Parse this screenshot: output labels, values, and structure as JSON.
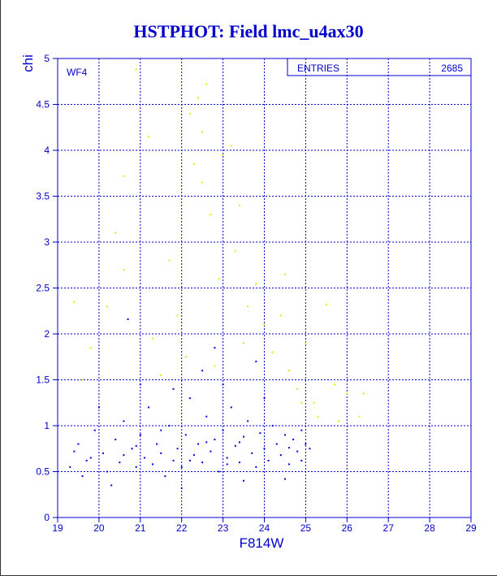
{
  "chart_data": {
    "type": "scatter",
    "title": "HSTPHOT: Field lmc_u4ax30",
    "xlabel": "F814W",
    "ylabel": "chi",
    "annotation": "WF4",
    "stats": {
      "label": "ENTRIES",
      "value": 2685
    },
    "xlim": [
      19,
      29
    ],
    "ylim": [
      0,
      5
    ],
    "xticks": [
      19,
      20,
      21,
      22,
      23,
      24,
      25,
      26,
      27,
      28,
      29
    ],
    "yticks": [
      0,
      0.5,
      1,
      1.5,
      2,
      2.5,
      3,
      3.5,
      4,
      4.5,
      5
    ],
    "grid": true,
    "axis_color": "#0000cc",
    "series": [
      {
        "color": "#0000dd",
        "x": [
          19.3,
          19.5,
          19.7,
          19.9,
          20.1,
          20.2,
          20.4,
          20.5,
          20.6,
          20.7,
          20.8,
          20.9,
          21.0,
          21.1,
          21.2,
          21.3,
          21.4,
          21.5,
          21.6,
          21.7,
          21.8,
          21.9,
          22.0,
          22.1,
          22.2,
          22.3,
          22.4,
          22.5,
          22.6,
          22.7,
          22.8,
          22.9,
          23.0,
          23.1,
          23.2,
          23.3,
          23.4,
          23.5,
          23.6,
          23.7,
          23.8,
          23.9,
          24.0,
          24.1,
          24.2,
          24.3,
          24.4,
          24.5,
          24.6,
          24.7,
          24.8,
          24.9,
          25.0,
          25.1,
          19.6,
          20.0,
          20.3,
          21.0,
          22.0,
          22.5,
          23.0,
          23.5,
          24.0,
          24.5,
          23.8,
          22.8,
          21.8,
          19.8,
          20.9,
          22.2,
          23.4,
          24.6,
          24.9,
          23.1,
          22.6,
          21.5,
          20.6,
          19.4
        ],
        "values": [
          0.55,
          0.8,
          0.62,
          0.95,
          0.7,
          0.5,
          0.85,
          0.6,
          1.05,
          2.16,
          0.75,
          0.55,
          0.9,
          0.65,
          1.2,
          0.58,
          0.8,
          0.7,
          0.45,
          1.0,
          0.62,
          0.75,
          0.55,
          0.9,
          1.3,
          0.68,
          0.8,
          0.6,
          1.1,
          0.72,
          0.85,
          0.5,
          0.95,
          0.65,
          1.2,
          0.78,
          0.6,
          0.88,
          1.05,
          0.7,
          0.55,
          0.92,
          0.75,
          0.62,
          1.0,
          0.8,
          0.68,
          0.9,
          0.58,
          0.85,
          0.72,
          0.95,
          0.8,
          0.75,
          0.45,
          1.2,
          0.35,
          1.45,
          0.32,
          1.6,
          1.45,
          0.4,
          1.3,
          0.42,
          1.7,
          1.85,
          1.4,
          0.65,
          0.78,
          0.62,
          0.82,
          0.76,
          0.62,
          0.58,
          0.82,
          0.95,
          0.68,
          0.72
        ]
      },
      {
        "color": "#e8e800",
        "x": [
          19.4,
          19.8,
          20.4,
          20.6,
          20.6,
          20.9,
          21.2,
          21.3,
          21.7,
          21.9,
          22.2,
          22.3,
          22.4,
          22.5,
          22.5,
          22.6,
          22.7,
          22.9,
          23.0,
          23.2,
          23.3,
          23.4,
          23.6,
          23.8,
          24.0,
          24.2,
          24.4,
          24.5,
          24.6,
          24.8,
          25.0,
          25.2,
          25.5,
          25.7,
          26.0,
          26.4,
          25.3,
          24.9,
          22.1,
          22.8,
          23.5,
          21.5,
          20.2,
          19.6,
          26.3,
          25.8
        ],
        "values": [
          2.35,
          1.85,
          3.1,
          3.72,
          2.7,
          4.88,
          4.15,
          1.95,
          2.8,
          2.2,
          4.4,
          3.85,
          4.57,
          3.65,
          4.2,
          4.72,
          3.3,
          2.6,
          3.95,
          4.05,
          2.9,
          3.4,
          2.3,
          2.55,
          2.1,
          1.8,
          2.2,
          2.65,
          1.6,
          1.4,
          1.9,
          1.25,
          2.32,
          1.45,
          1.35,
          1.35,
          1.1,
          1.25,
          1.75,
          1.65,
          1.9,
          1.55,
          2.3,
          1.5,
          1.1,
          1.05
        ]
      }
    ]
  }
}
